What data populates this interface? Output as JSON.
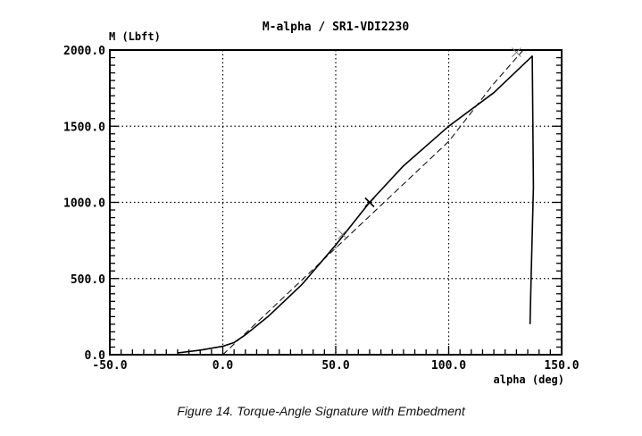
{
  "figure": {
    "caption": "Figure 14. Torque-Angle Signature with Embedment"
  },
  "chart_data": {
    "type": "line",
    "title": "M-alpha / SR1-VDI2230",
    "xlabel": "alpha (deg)",
    "ylabel": "M (Lbft)",
    "xlim": [
      -50,
      150
    ],
    "ylim": [
      0,
      2000
    ],
    "x_ticks": [
      -50,
      0,
      50,
      100,
      150
    ],
    "x_tick_labels": [
      "-50.0",
      "0.0",
      "50.0",
      "100.0",
      "150.0"
    ],
    "y_ticks": [
      0,
      500,
      1000,
      1500,
      2000
    ],
    "y_tick_labels": [
      "0.0",
      "500.0",
      "1000.0",
      "1500.0",
      "2000.0"
    ],
    "grid": true,
    "series": [
      {
        "style": "solid",
        "x": [
          -20,
          -10,
          0,
          5,
          10,
          20,
          35,
          50,
          65,
          80,
          100,
          120,
          137,
          137.5,
          136.5,
          136
        ],
        "y": [
          12,
          30,
          55,
          80,
          130,
          250,
          460,
          720,
          1000,
          1240,
          1500,
          1720,
          1960,
          1100,
          500,
          200
        ]
      },
      {
        "style": "dashed",
        "x": [
          0,
          20,
          50,
          80,
          100,
          120,
          133
        ],
        "y": [
          0,
          280,
          700,
          1120,
          1400,
          1780,
          2000
        ]
      }
    ],
    "markers": [
      {
        "style": "x-light",
        "x": 53,
        "y": 790
      },
      {
        "style": "x-bold",
        "x": 65,
        "y": 1000
      },
      {
        "style": "x-light",
        "x": 130,
        "y": 1985
      }
    ]
  }
}
